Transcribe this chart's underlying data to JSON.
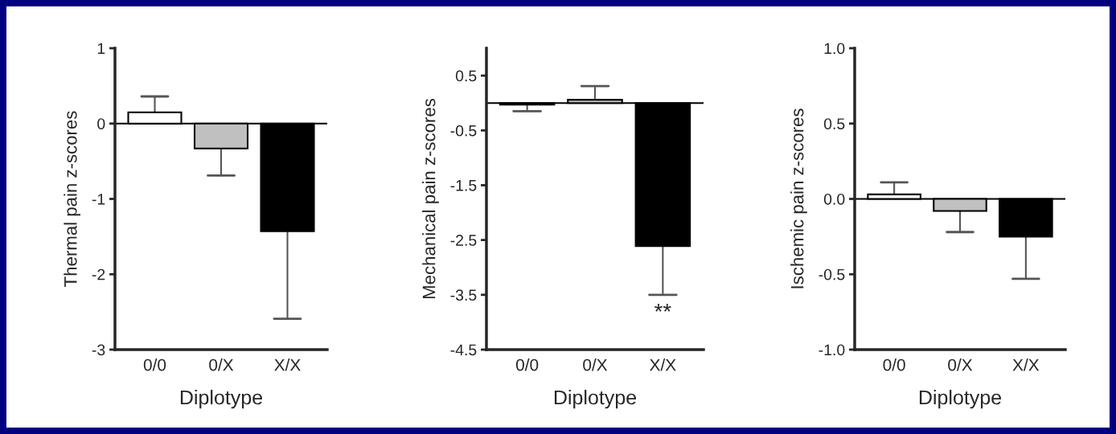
{
  "chart_data": [
    {
      "type": "bar",
      "xlabel": "Diplotype",
      "ylabel": "Thermal pain z-scores",
      "categories": [
        "0/0",
        "0/X",
        "X/X"
      ],
      "values": [
        0.15,
        -0.33,
        -1.43
      ],
      "colors": [
        "#ffffff",
        "#c0c0c0",
        "#000000"
      ],
      "errors": [
        [
          0.15,
          0.36
        ],
        [
          -0.69,
          -0.33
        ],
        [
          -2.59,
          -1.43
        ]
      ],
      "ylim": [
        -3,
        1
      ],
      "yticks": [
        -3,
        -2,
        -1,
        0,
        1
      ],
      "ref_lines": [
        {
          "axis": "y",
          "value": 0
        }
      ],
      "grid": false
    },
    {
      "type": "bar",
      "xlabel": "Diplotype",
      "ylabel": "Mechanical pain z-scores",
      "categories": [
        "0/0",
        "0/X",
        "X/X"
      ],
      "values": [
        -0.03,
        0.06,
        -2.61
      ],
      "colors": [
        "#ffffff",
        "#c0c0c0",
        "#000000"
      ],
      "errors": [
        [
          -0.15,
          -0.03
        ],
        [
          0.06,
          0.31
        ],
        [
          -3.5,
          -2.61
        ]
      ],
      "ylim": [
        -4.5,
        1
      ],
      "yticks": [
        -4.5,
        -3.5,
        -2.5,
        -1.5,
        -0.5,
        0.5
      ],
      "ref_lines": [
        {
          "axis": "y",
          "value": 0
        }
      ],
      "annotations": [
        "**"
      ],
      "grid": false
    },
    {
      "type": "bar",
      "xlabel": "Diplotype",
      "ylabel": "Ischemic pain z-scores",
      "categories": [
        "0/0",
        "0/X",
        "X/X"
      ],
      "values": [
        0.03,
        -0.08,
        -0.25
      ],
      "colors": [
        "#ffffff",
        "#c0c0c0",
        "#000000"
      ],
      "errors": [
        [
          0.03,
          0.11
        ],
        [
          -0.22,
          -0.08
        ],
        [
          -0.53,
          -0.25
        ]
      ],
      "ylim": [
        -1,
        1
      ],
      "yticks": [
        {
          "value": -1,
          "label": "-1.0"
        },
        {
          "value": -0.5,
          "label": "-0.5"
        },
        {
          "value": 0,
          "label": "0.0"
        },
        {
          "value": 0.5,
          "label": "0.5"
        },
        {
          "value": 1,
          "label": "1.0"
        }
      ],
      "ref_lines": [
        {
          "axis": "y",
          "value": 0
        }
      ],
      "grid": false
    }
  ]
}
